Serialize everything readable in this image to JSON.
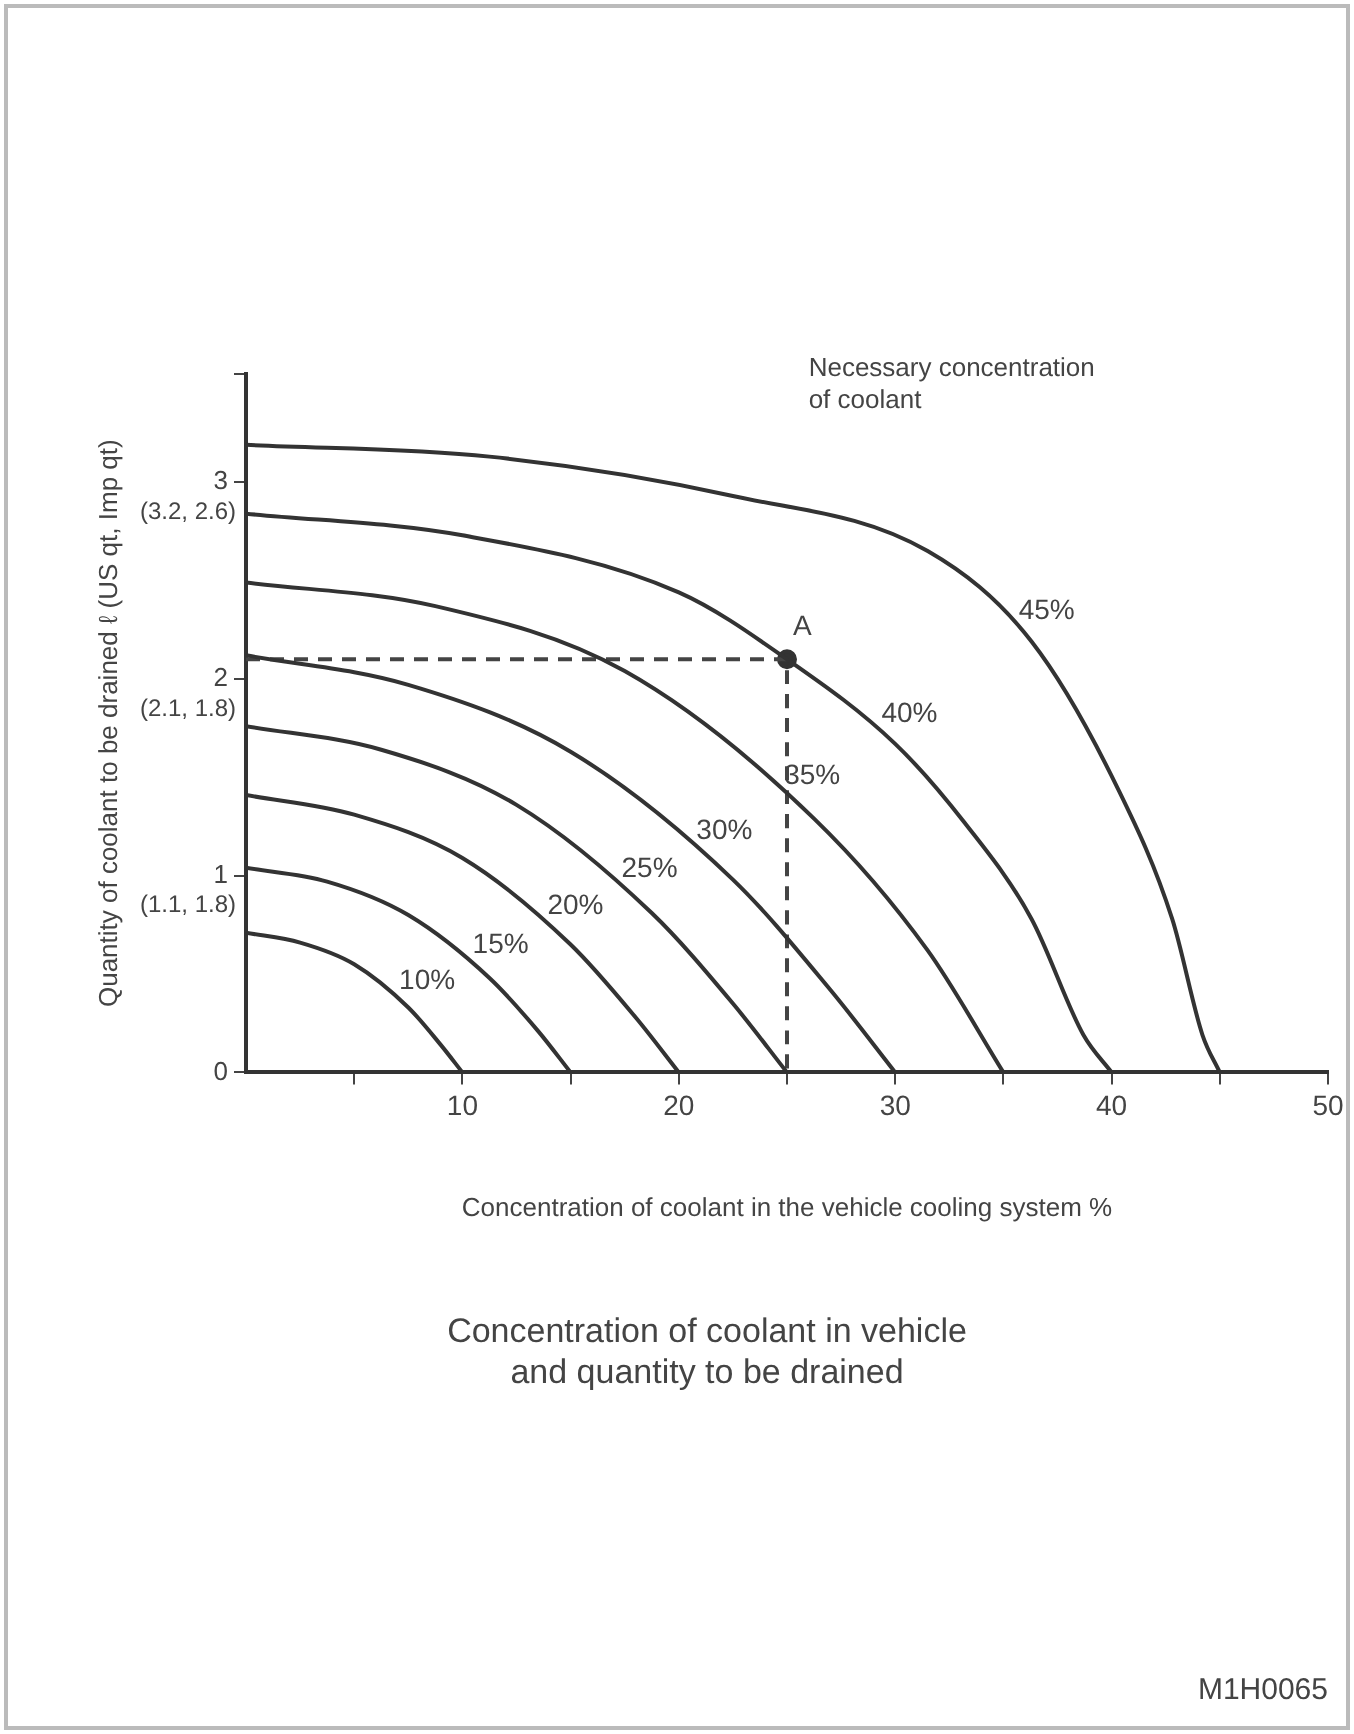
{
  "chart_data": {
    "type": "line",
    "title": "Concentration of coolant in vehicle\nand quantity to be drained",
    "xlabel": "Concentration of coolant in the vehicle cooling system %",
    "ylabel": "Quantity of coolant to be drained ℓ (US qt, Imp qt)",
    "xlim": [
      0,
      50
    ],
    "xticks": [
      {
        "value": 5,
        "label": null
      },
      10,
      {
        "value": 15,
        "label": null
      },
      20,
      {
        "value": 25,
        "label": null
      },
      30,
      {
        "value": 35,
        "label": null
      },
      40,
      {
        "value": 45,
        "label": null
      },
      50
    ],
    "ylim": [
      0,
      3.55
    ],
    "yticks": [
      0,
      1,
      2,
      3,
      {
        "value": 3.55,
        "label": null
      }
    ],
    "grid": false,
    "legend": false,
    "marker": "none",
    "line_style": "solid",
    "series": [
      {
        "name": "10%",
        "color": "#333333",
        "x": [
          0,
          2.5,
          5,
          7.5,
          9,
          10
        ],
        "values": [
          0.71,
          0.66,
          0.55,
          0.33,
          0.14,
          0
        ]
      },
      {
        "name": "15%",
        "color": "#333333",
        "x": [
          0,
          3.75,
          7.5,
          11.25,
          13.5,
          15
        ],
        "values": [
          1.04,
          0.97,
          0.8,
          0.48,
          0.21,
          0
        ]
      },
      {
        "name": "20%",
        "color": "#333333",
        "x": [
          0,
          5,
          10,
          15,
          18,
          20
        ],
        "values": [
          1.41,
          1.31,
          1.09,
          0.65,
          0.28,
          0
        ]
      },
      {
        "name": "25%",
        "color": "#333333",
        "x": [
          0,
          6.25,
          12.5,
          18.75,
          22.5,
          25
        ],
        "values": [
          1.76,
          1.64,
          1.36,
          0.81,
          0.35,
          0
        ]
      },
      {
        "name": "30%",
        "color": "#333333",
        "x": [
          0,
          7.5,
          15,
          22.5,
          27,
          30
        ],
        "values": [
          2.12,
          1.97,
          1.63,
          0.98,
          0.42,
          0
        ]
      },
      {
        "name": "35%",
        "color": "#333333",
        "x": [
          0,
          8.75,
          17.5,
          26.25,
          31.5,
          35
        ],
        "values": [
          2.49,
          2.37,
          2.04,
          1.29,
          0.62,
          0
        ]
      },
      {
        "name": "40%",
        "color": "#333333",
        "x": [
          0,
          10,
          20,
          25,
          30,
          33.2,
          36.3,
          38.7,
          40
        ],
        "values": [
          2.84,
          2.73,
          2.44,
          2.1,
          1.67,
          1.27,
          0.78,
          0.19,
          0
        ]
      },
      {
        "name": "45%",
        "color": "#333333",
        "x": [
          0,
          11.25,
          22.5,
          31.5,
          36.3,
          40.3,
          42.8,
          44.2,
          45
        ],
        "values": [
          3.19,
          3.13,
          2.93,
          2.65,
          2.19,
          1.44,
          0.78,
          0.19,
          0
        ]
      },
      {
        "type": "line",
        "color": "#444444",
        "line_style": "dashed",
        "x": [
          0,
          25,
          25
        ],
        "values": [
          2.1,
          2.1,
          0
        ]
      },
      {
        "type": "scatter",
        "color": "#333333",
        "marker": "circle",
        "x": [
          25
        ],
        "values": [
          2.1
        ]
      }
    ],
    "annotations": [
      {
        "text": "A",
        "x": 25,
        "y": 2.1
      },
      "(1.1, 1.8)",
      "(2.1, 1.8)",
      "(3.2, 2.6)",
      "Necessary concentration\nof coolant",
      "M1H0065"
    ]
  }
}
